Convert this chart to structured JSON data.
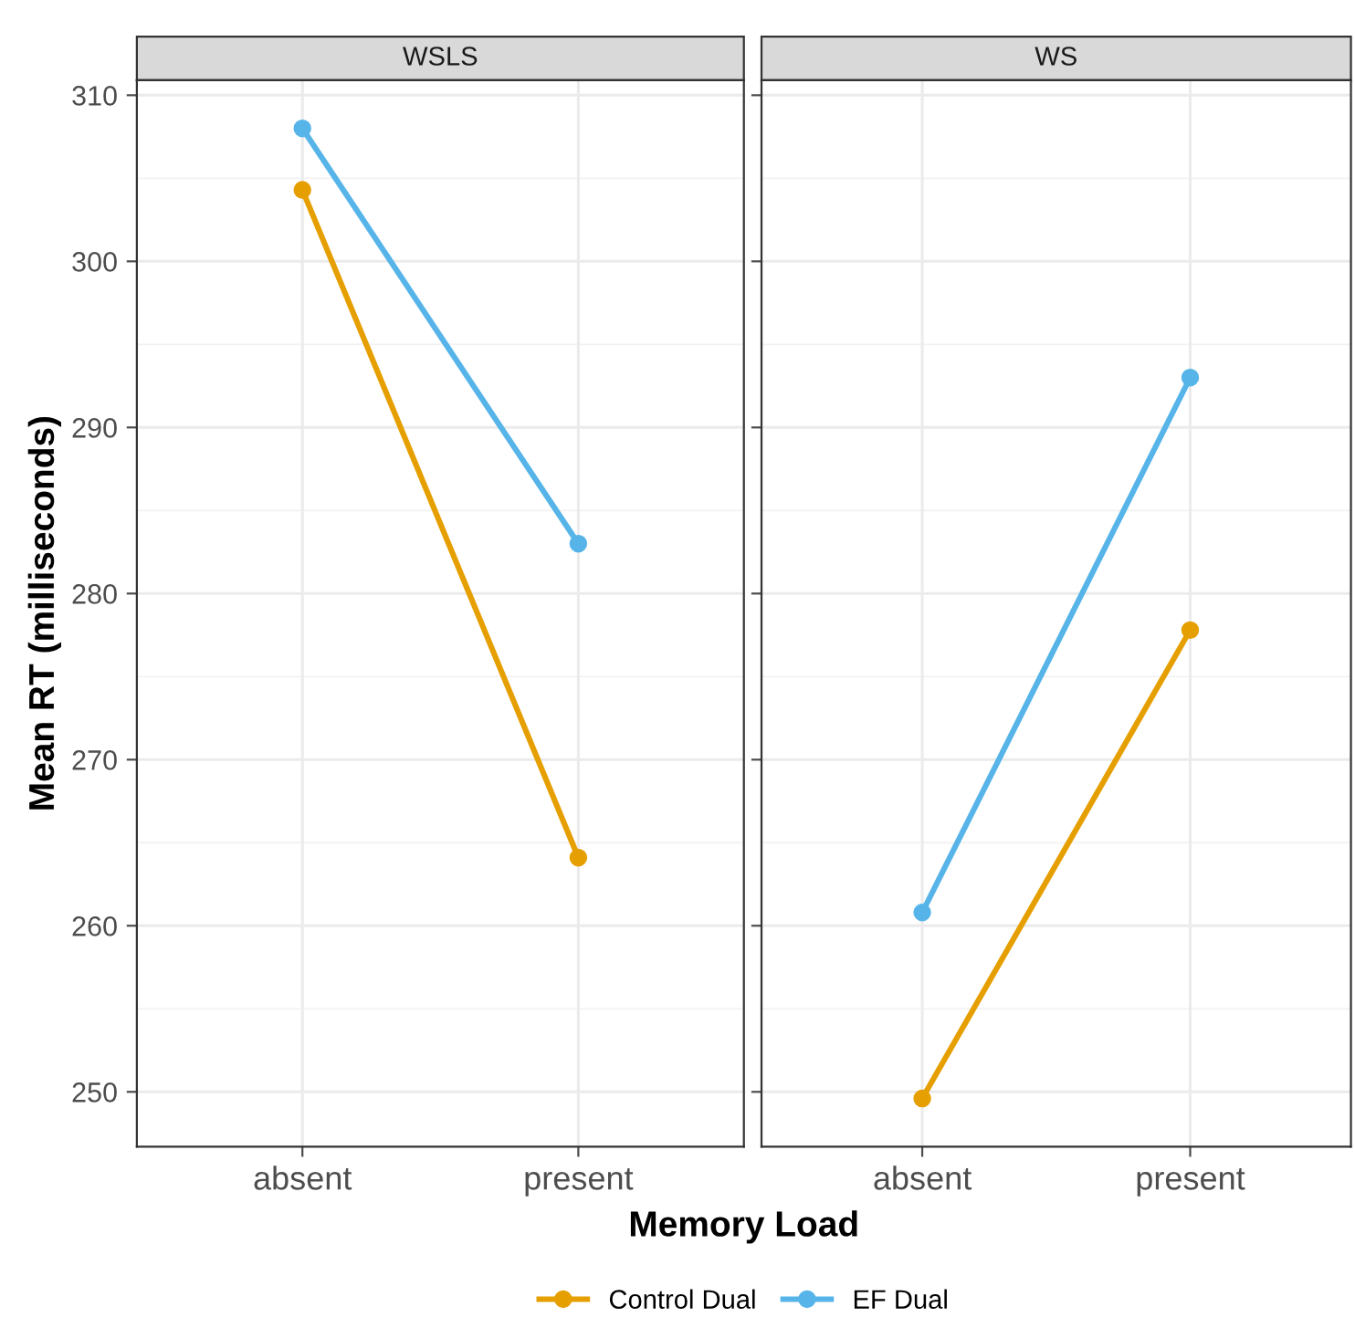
{
  "chart_data": [
    {
      "type": "line",
      "title": "WSLS",
      "ylabel": "Mean RT (milliseconds)",
      "xlabel": "Memory Load",
      "categories": [
        "absent",
        "present"
      ],
      "series": [
        {
          "name": "Control Dual",
          "color": "#e69f00",
          "values": [
            304.3,
            264.1
          ]
        },
        {
          "name": "EF Dual",
          "color": "#56b4e9",
          "values": [
            308.0,
            283.0
          ]
        }
      ],
      "ylim": [
        246.7,
        310.9
      ],
      "yticks": [
        250,
        260,
        270,
        280,
        290,
        300,
        310
      ],
      "grid": true,
      "marker": "circle",
      "legend": "bottom"
    },
    {
      "type": "line",
      "title": "WS",
      "categories": [
        "absent",
        "present"
      ],
      "series": [
        {
          "color": "#e69f00",
          "values": [
            249.6,
            277.8
          ]
        },
        {
          "color": "#56b4e9",
          "values": [
            260.8,
            293.0
          ]
        }
      ],
      "ylim": [
        246.7,
        310.9
      ],
      "yticks": [
        250,
        260,
        270,
        280,
        290,
        300,
        310
      ],
      "grid": true,
      "marker": "circle",
      "tick_labels": "x"
    }
  ]
}
